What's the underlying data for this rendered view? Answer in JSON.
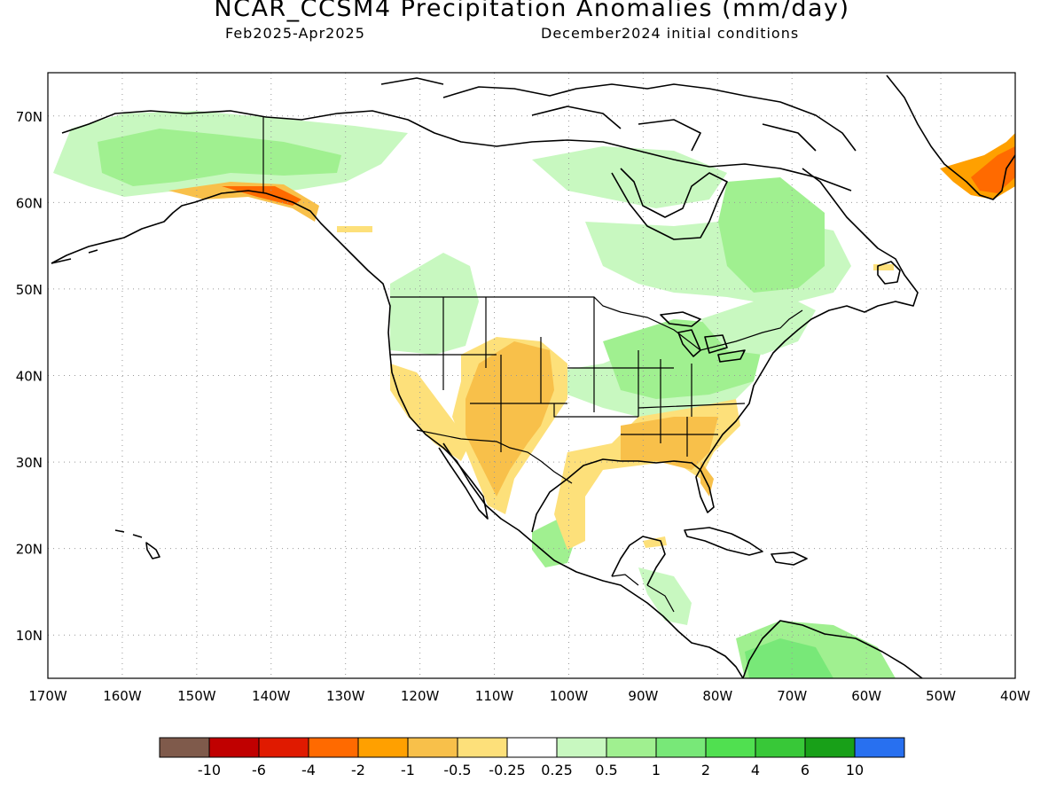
{
  "title": "NCAR_CCSM4 Precipitation Anomalies (mm/day)",
  "period": "Feb2025-Apr2025",
  "initial_conditions": "December2024 initial conditions",
  "lat_labels": [
    "70N",
    "60N",
    "50N",
    "40N",
    "30N",
    "20N",
    "10N"
  ],
  "lon_labels": [
    "170W",
    "160W",
    "150W",
    "140W",
    "130W",
    "120W",
    "110W",
    "100W",
    "90W",
    "80W",
    "70W",
    "60W",
    "50W",
    "40W"
  ],
  "colorbar": {
    "colors": [
      "#7f5a4b",
      "#c00000",
      "#e01a00",
      "#ff6a00",
      "#ffa000",
      "#f8c04a",
      "#fde07a",
      "#ffffff",
      "#c8f8c0",
      "#a0f090",
      "#78e878",
      "#50e050",
      "#38c838",
      "#18a018",
      "#2870f0"
    ],
    "labels": [
      "-10",
      "-6",
      "-4",
      "-2",
      "-1",
      "-0.5",
      "-0.25",
      "0.25",
      "0.5",
      "1",
      "2",
      "4",
      "6",
      "10"
    ]
  }
}
